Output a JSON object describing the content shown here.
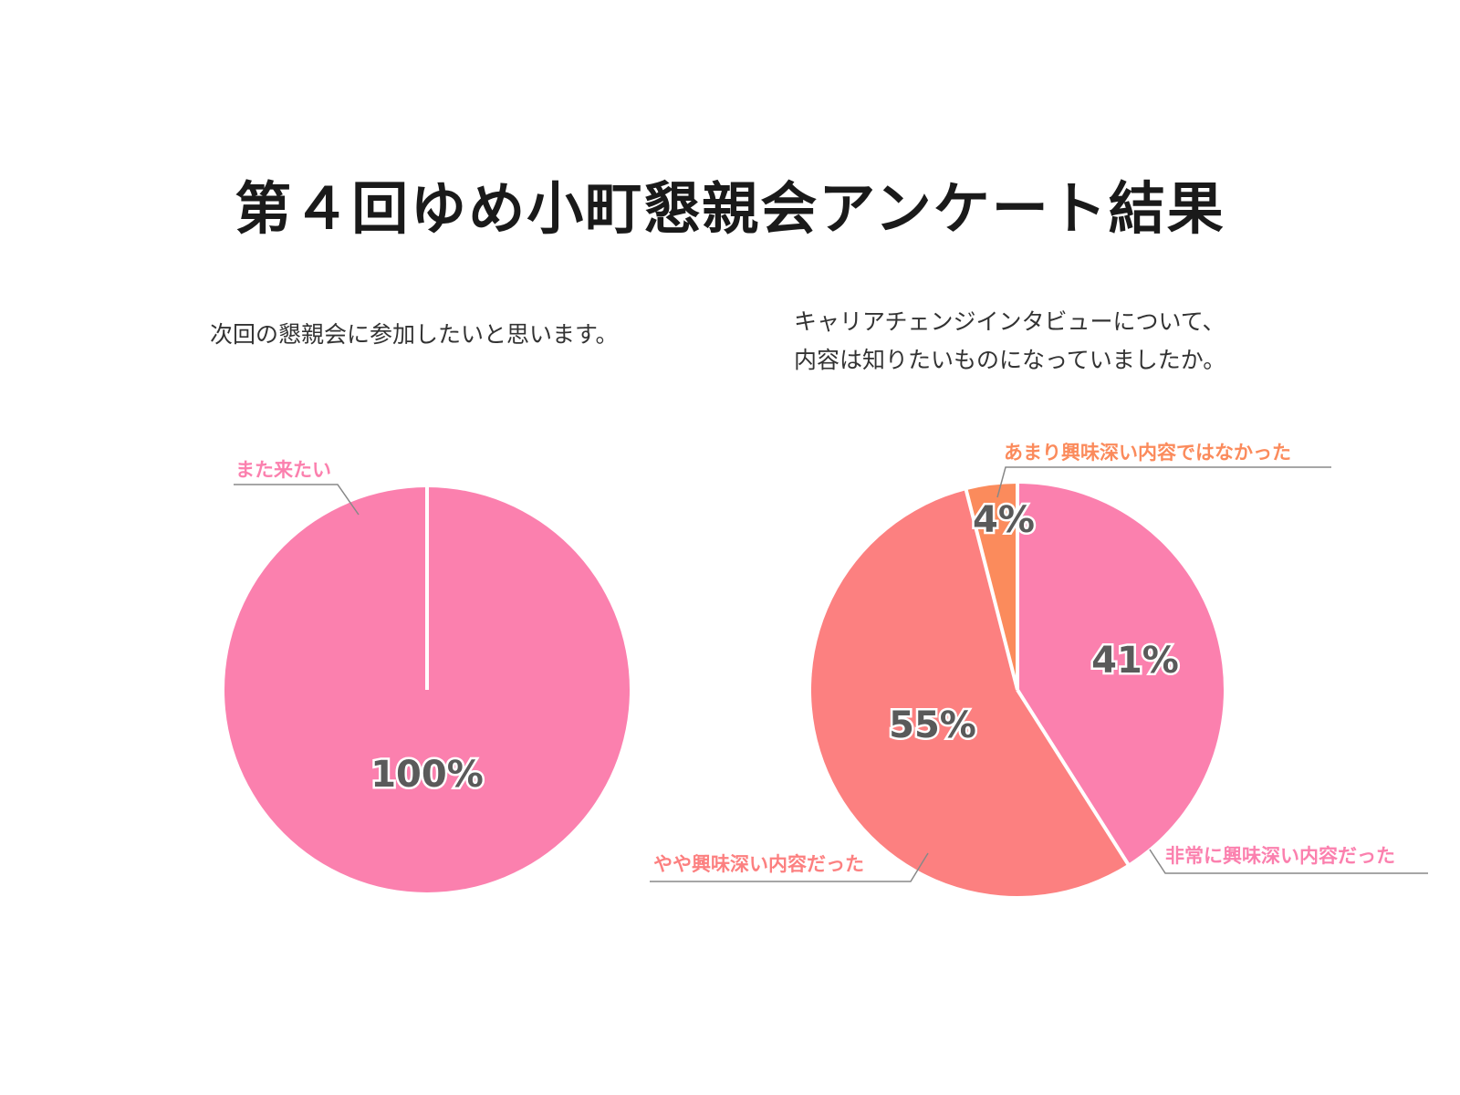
{
  "title": "第４回ゆめ小町懇親会アンケート結果",
  "colors": {
    "pink": "#fb80ae",
    "salmon": "#fc8080",
    "orange": "#fb8b5c",
    "leader": "#888888",
    "pct_text": "#5a5a5a"
  },
  "chart_data": [
    {
      "type": "pie",
      "title": "次回の懇親会に参加したいと思います。",
      "slices": [
        {
          "label": "また来たい",
          "value": 100,
          "display": "100%",
          "color": "#fb80ae"
        }
      ]
    },
    {
      "type": "pie",
      "title": "キャリアチェンジインタビューについて、\n内容は知りたいものになっていましたか。",
      "title_lines": [
        "キャリアチェンジインタビューについて、",
        "内容は知りたいものになっていましたか。"
      ],
      "slices": [
        {
          "label": "非常に興味深い内容だった",
          "value": 41,
          "display": "41%",
          "color": "#fb80ae"
        },
        {
          "label": "やや興味深い内容だった",
          "value": 55,
          "display": "55%",
          "color": "#fc8080"
        },
        {
          "label": "あまり興味深い内容ではなかった",
          "value": 4,
          "display": "4%",
          "color": "#fb8b5c"
        }
      ]
    }
  ]
}
